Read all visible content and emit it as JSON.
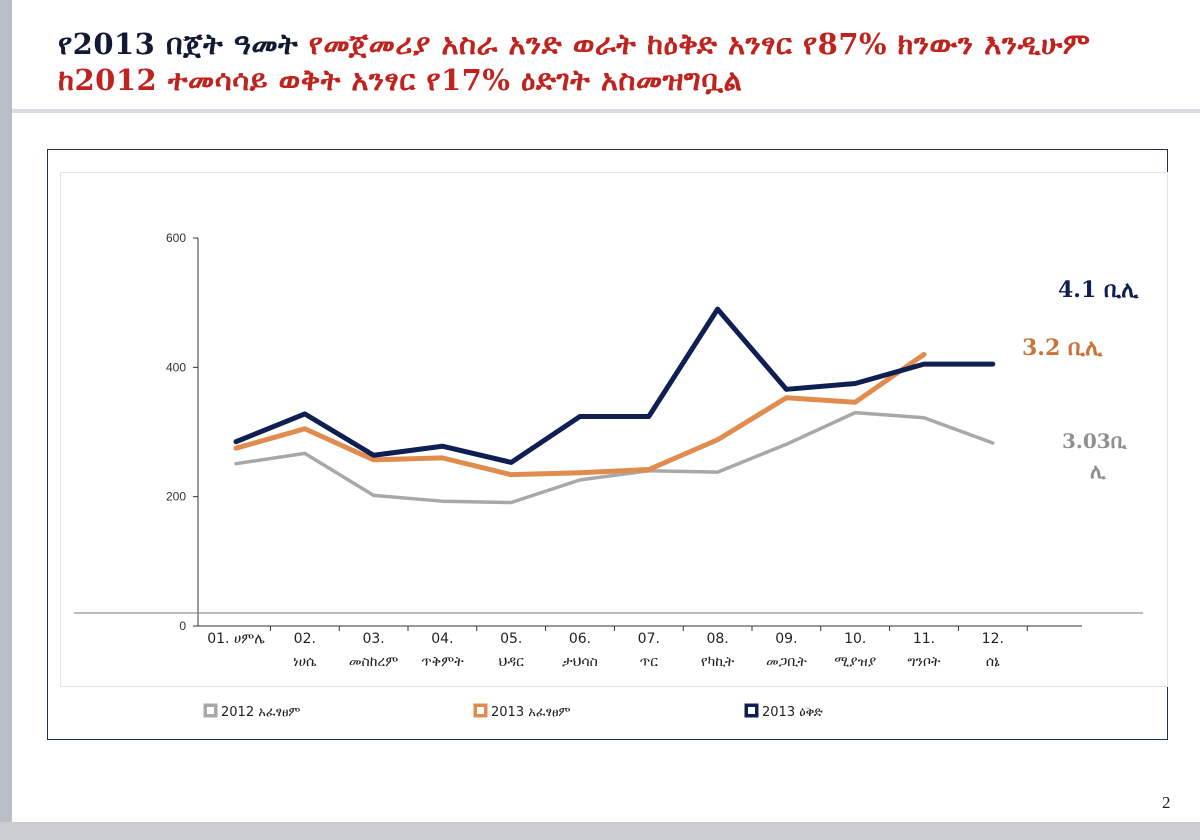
{
  "title": {
    "part_black": "የ2013 በጀት ዓመት ",
    "part_red": "የመጀመሪያ አስራ አንድ ወራት ከዕቅድ አንፃር የ87% ክንውን እንዲሁም ከ2012 ተመሳሳይ ወቅት አንፃር የ17% ዕድገት አስመዝግቧል"
  },
  "page_number": "2",
  "colors": {
    "series_2012": "#a8a8a8",
    "series_2013_actual": "#e08c4f",
    "series_2013_plan": "#0f1f52",
    "title_red": "#c0231e"
  },
  "chart_data": {
    "type": "line",
    "categories": [
      [
        "01.",
        "ሀምሌ"
      ],
      [
        "02.",
        "ነሀሴ"
      ],
      [
        "03.",
        "መስከረም"
      ],
      [
        "04.",
        "ጥቅምት"
      ],
      [
        "05.",
        "ህዳር"
      ],
      [
        "06.",
        "ታህሳስ"
      ],
      [
        "07.",
        "ጥር"
      ],
      [
        "08.",
        "የካኪት"
      ],
      [
        "09.",
        "መጋቢት"
      ],
      [
        "10.",
        "ሚያዝያ"
      ],
      [
        "11.",
        "ግንቦት"
      ],
      [
        "12.",
        "ሰኔ"
      ]
    ],
    "ylim": [
      0,
      600
    ],
    "yticks": [
      0,
      200,
      400,
      600
    ],
    "series": [
      {
        "name": "2012 አፈፃፀም",
        "color": "#a8a8a8",
        "values": [
          251,
          267,
          202,
          193,
          191,
          226,
          240,
          238,
          281,
          330,
          322,
          283
        ],
        "end_label": "3.03ቢ ሊ"
      },
      {
        "name": "2013 አፈፃፀም",
        "color": "#e08c4f",
        "values": [
          275,
          305,
          257,
          260,
          234,
          237,
          242,
          288,
          353,
          346,
          420,
          null
        ],
        "end_label": "3.2 ቢሊ"
      },
      {
        "name": "2013 ዕቅድ",
        "color": "#0f1f52",
        "values": [
          285,
          328,
          264,
          278,
          253,
          324,
          324,
          490,
          366,
          375,
          405,
          405
        ],
        "end_label": "4.1 ቢሊ"
      }
    ],
    "legend_position": "bottom",
    "grid": false
  }
}
